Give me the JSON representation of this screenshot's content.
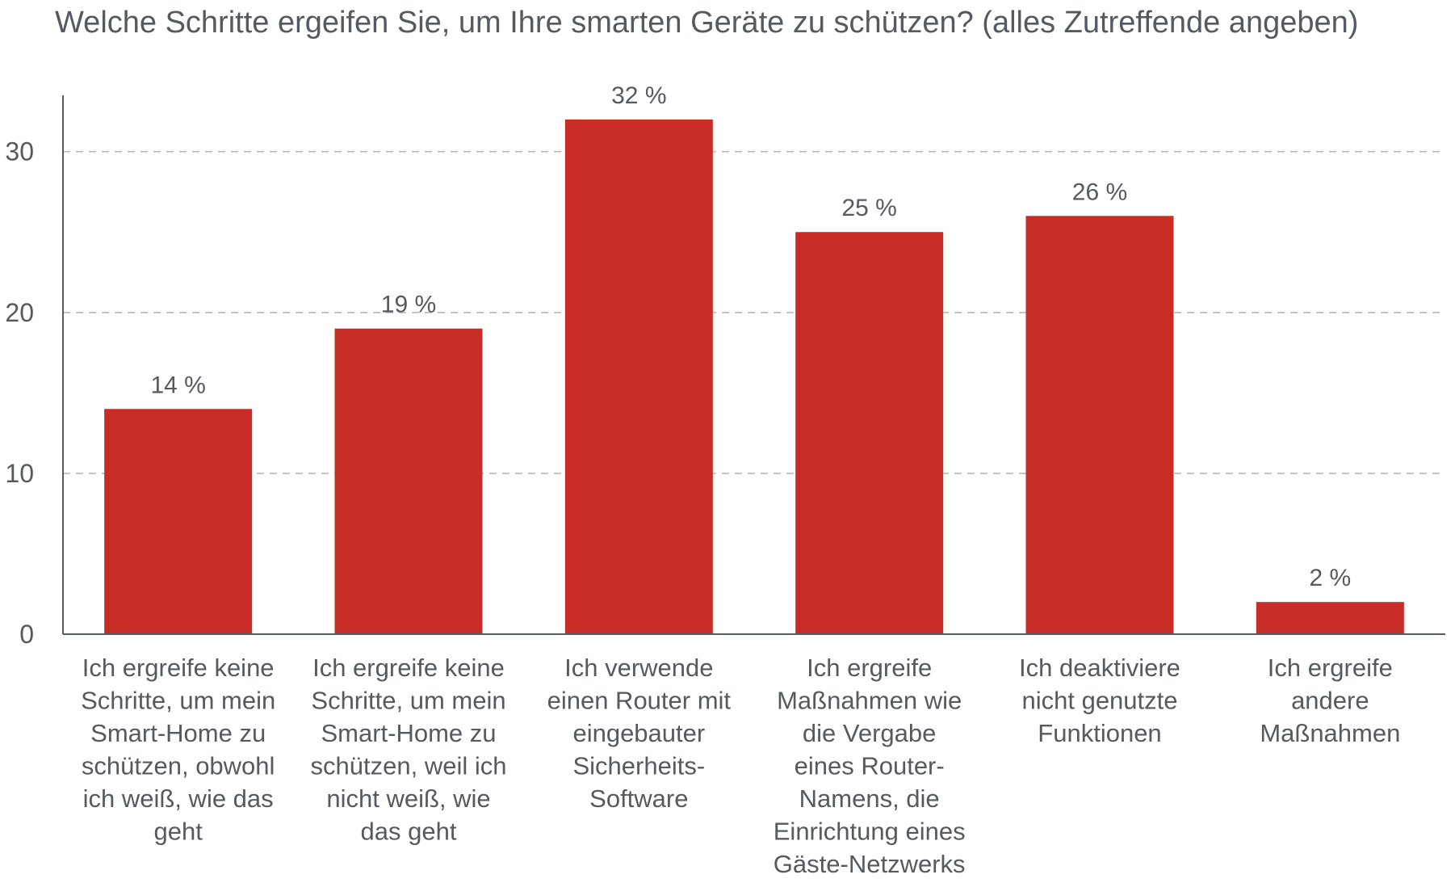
{
  "title": "Welche Schritte ergeifen Sie, um Ihre smarten Geräte zu schützen? (alles Zutreffende angeben)",
  "colors": {
    "bar": "#c72c27",
    "text": "#555a60",
    "axis": "#555a60",
    "grid": "#b8b8b8"
  },
  "chart_data": {
    "type": "bar",
    "title": "Welche Schritte ergeifen Sie, um Ihre smarten Geräte zu schützen? (alles Zutreffende angeben)",
    "xlabel": "",
    "ylabel": "",
    "ylim": [
      0,
      33.5
    ],
    "yticks": [
      0,
      10,
      20,
      30
    ],
    "grid": true,
    "grid_style": "dashed",
    "legend": "none",
    "categories": [
      "Ich ergreife keine Schritte, um mein Smart-Home zu schützen, obwohl ich weiß, wie das geht",
      "Ich ergreife keine Schritte, um mein Smart-Home zu schützen, weil ich nicht weiß, wie das geht",
      "Ich verwende einen Router mit eingebauter Sicherheits-Software",
      "Ich ergreife Maßnahmen wie die Vergabe eines Router-Namens, die Einrichtung eines Gäste-Netzwerks",
      "Ich deaktiviere nicht genutzte Funktionen",
      "Ich ergreife andere Maßnahmen"
    ],
    "category_lines": [
      [
        "Ich ergreife keine",
        "Schritte, um mein",
        "Smart-Home zu",
        "schützen, obwohl",
        "ich weiß, wie das",
        "geht"
      ],
      [
        "Ich ergreife keine",
        "Schritte, um mein",
        "Smart-Home zu",
        "schützen, weil ich",
        "nicht weiß, wie",
        "das geht"
      ],
      [
        "Ich verwende",
        "einen Router mit",
        "eingebauter",
        "Sicherheits-",
        "Software"
      ],
      [
        "Ich ergreife",
        "Maßnahmen wie",
        "die Vergabe",
        "eines Router-",
        "Namens, die",
        "Einrichtung eines",
        "Gäste-Netzwerks"
      ],
      [
        "Ich deaktiviere",
        "nicht genutzte",
        "Funktionen"
      ],
      [
        "Ich ergreife",
        "andere",
        "Maßnahmen"
      ]
    ],
    "values": [
      14,
      19,
      32,
      25,
      26,
      2
    ],
    "data_labels": [
      "14 %",
      "19 %",
      "32 %",
      "25 %",
      "26 %",
      "2 %"
    ]
  }
}
